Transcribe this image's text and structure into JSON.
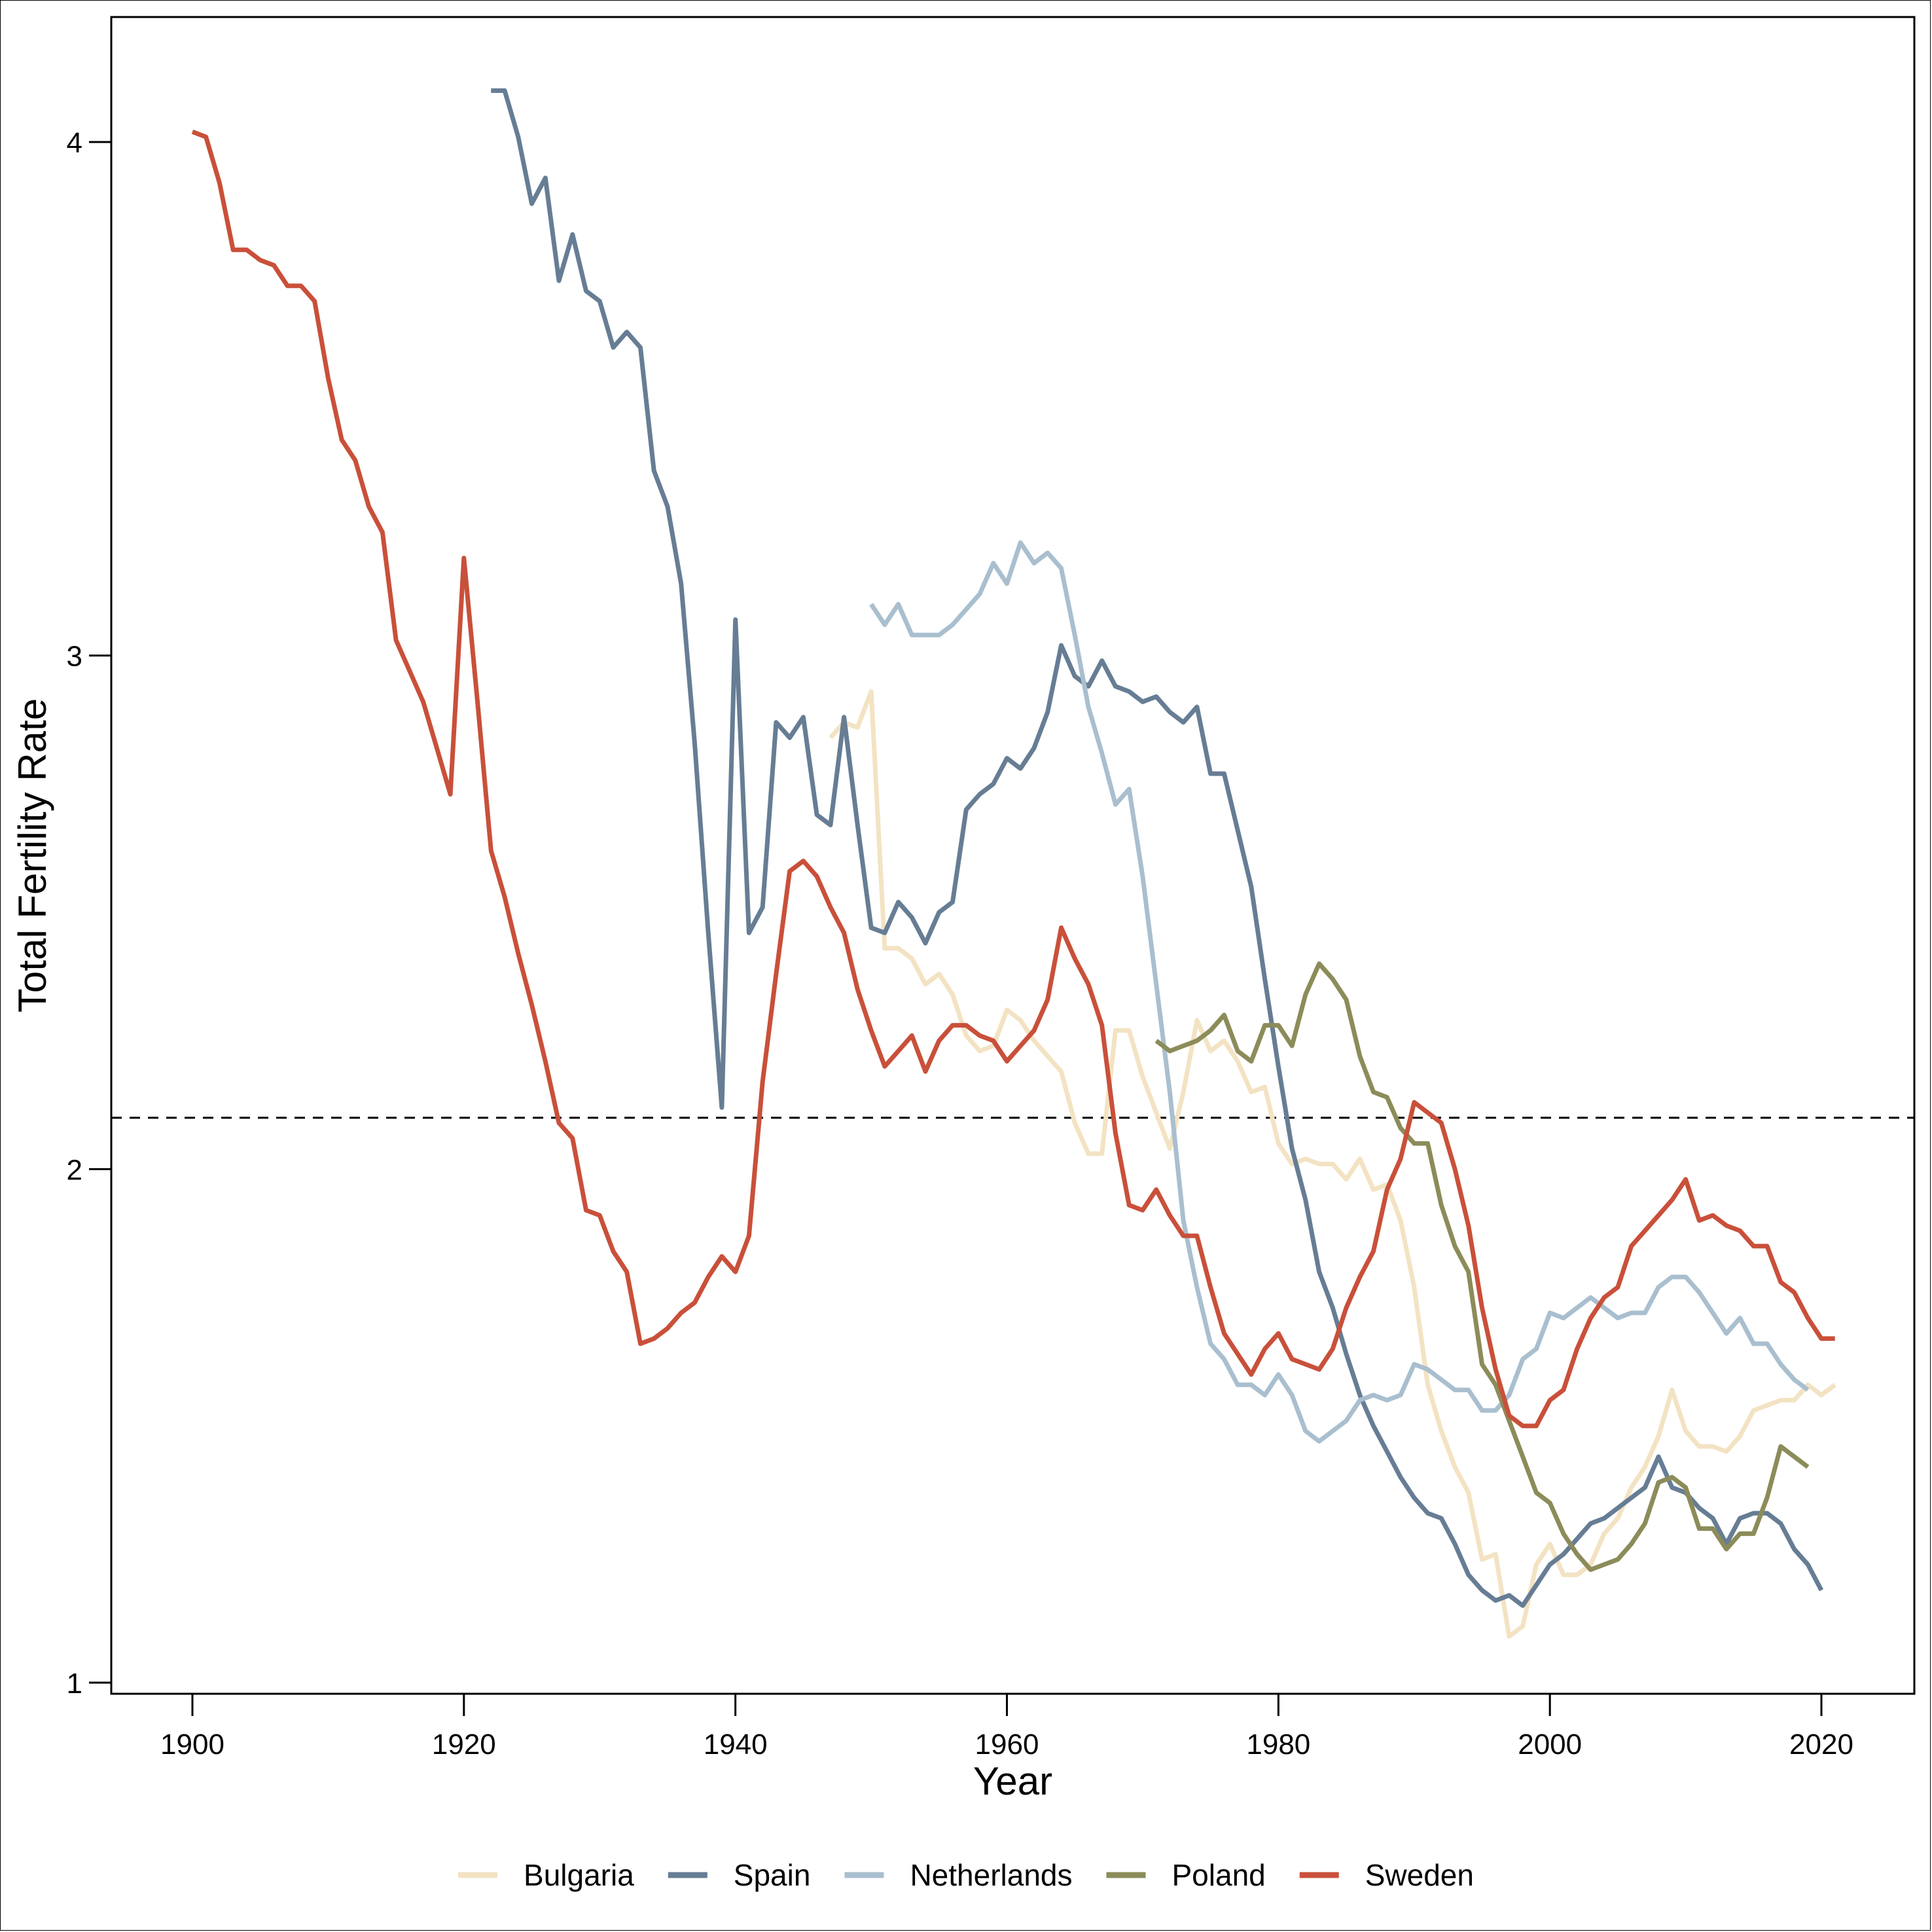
{
  "chart_data": {
    "type": "line",
    "xlabel": "Year",
    "ylabel": "Total Fertility Rate",
    "xlim": [
      1894,
      2027
    ],
    "ylim": [
      0.98,
      4.25
    ],
    "x_ticks": [
      1900,
      1920,
      1940,
      1960,
      1980,
      2000,
      2020
    ],
    "y_ticks": [
      1,
      2,
      3,
      4
    ],
    "reference_line": {
      "y": 2.1,
      "style": "dashed"
    },
    "legend_position": "bottom",
    "series": [
      {
        "name": "Bulgaria",
        "color": "#f3e3c3",
        "x": [
          1947,
          1948,
          1949,
          1950,
          1951,
          1952,
          1953,
          1954,
          1955,
          1956,
          1957,
          1958,
          1959,
          1960,
          1961,
          1962,
          1963,
          1964,
          1965,
          1966,
          1967,
          1968,
          1969,
          1970,
          1971,
          1972,
          1973,
          1974,
          1975,
          1976,
          1977,
          1978,
          1979,
          1980,
          1981,
          1982,
          1983,
          1984,
          1985,
          1986,
          1987,
          1988,
          1989,
          1990,
          1991,
          1992,
          1993,
          1994,
          1995,
          1996,
          1997,
          1998,
          1999,
          2000,
          2001,
          2002,
          2003,
          2004,
          2005,
          2006,
          2007,
          2008,
          2009,
          2010,
          2011,
          2012,
          2013,
          2014,
          2015,
          2016,
          2017,
          2018,
          2019,
          2020,
          2021
        ],
        "y": [
          2.84,
          2.87,
          2.86,
          2.93,
          2.43,
          2.43,
          2.41,
          2.36,
          2.38,
          2.34,
          2.26,
          2.23,
          2.24,
          2.31,
          2.29,
          2.25,
          2.22,
          2.19,
          2.09,
          2.03,
          2.03,
          2.27,
          2.27,
          2.18,
          2.11,
          2.04,
          2.15,
          2.29,
          2.23,
          2.25,
          2.21,
          2.15,
          2.16,
          2.05,
          2.01,
          2.02,
          2.01,
          2.01,
          1.98,
          2.02,
          1.96,
          1.97,
          1.9,
          1.77,
          1.58,
          1.49,
          1.42,
          1.37,
          1.24,
          1.25,
          1.09,
          1.11,
          1.23,
          1.27,
          1.21,
          1.21,
          1.23,
          1.29,
          1.32,
          1.38,
          1.42,
          1.48,
          1.57,
          1.49,
          1.46,
          1.46,
          1.45,
          1.48,
          1.53,
          1.54,
          1.55,
          1.55,
          1.58,
          1.56,
          1.58
        ]
      },
      {
        "name": "Spain",
        "color": "#667d94",
        "x": [
          1922,
          1923,
          1924,
          1925,
          1926,
          1927,
          1928,
          1929,
          1930,
          1931,
          1932,
          1933,
          1934,
          1935,
          1936,
          1937,
          1938,
          1939,
          1940,
          1941,
          1942,
          1943,
          1944,
          1945,
          1946,
          1947,
          1948,
          1949,
          1950,
          1951,
          1952,
          1953,
          1954,
          1955,
          1956,
          1957,
          1958,
          1959,
          1960,
          1961,
          1962,
          1963,
          1964,
          1965,
          1966,
          1967,
          1968,
          1969,
          1970,
          1971,
          1972,
          1973,
          1974,
          1975,
          1976,
          1977,
          1978,
          1979,
          1980,
          1981,
          1982,
          1983,
          1984,
          1985,
          1986,
          1987,
          1988,
          1989,
          1990,
          1991,
          1992,
          1993,
          1994,
          1995,
          1996,
          1997,
          1998,
          1999,
          2000,
          2001,
          2002,
          2003,
          2004,
          2005,
          2006,
          2007,
          2008,
          2009,
          2010,
          2011,
          2012,
          2013,
          2014,
          2015,
          2016,
          2017,
          2018,
          2019,
          2020
        ],
        "y": [
          4.1,
          4.1,
          4.01,
          3.88,
          3.93,
          3.73,
          3.82,
          3.71,
          3.69,
          3.6,
          3.63,
          3.6,
          3.36,
          3.29,
          3.14,
          2.83,
          2.46,
          2.12,
          3.07,
          2.46,
          2.51,
          2.87,
          2.84,
          2.88,
          2.69,
          2.67,
          2.88,
          2.67,
          2.47,
          2.46,
          2.52,
          2.49,
          2.44,
          2.5,
          2.52,
          2.7,
          2.73,
          2.75,
          2.8,
          2.78,
          2.82,
          2.89,
          3.02,
          2.96,
          2.94,
          2.99,
          2.94,
          2.93,
          2.91,
          2.92,
          2.89,
          2.87,
          2.9,
          2.77,
          2.77,
          2.66,
          2.55,
          2.37,
          2.2,
          2.04,
          1.94,
          1.8,
          1.73,
          1.64,
          1.56,
          1.5,
          1.45,
          1.4,
          1.36,
          1.33,
          1.32,
          1.27,
          1.21,
          1.18,
          1.16,
          1.17,
          1.15,
          1.19,
          1.23,
          1.25,
          1.28,
          1.31,
          1.32,
          1.34,
          1.36,
          1.38,
          1.44,
          1.38,
          1.37,
          1.34,
          1.32,
          1.27,
          1.32,
          1.33,
          1.33,
          1.31,
          1.26,
          1.23,
          1.18
        ]
      },
      {
        "name": "Netherlands",
        "color": "#a9bfcf",
        "x": [
          1950,
          1951,
          1952,
          1953,
          1954,
          1955,
          1956,
          1957,
          1958,
          1959,
          1960,
          1961,
          1962,
          1963,
          1964,
          1965,
          1966,
          1967,
          1968,
          1969,
          1970,
          1971,
          1972,
          1973,
          1974,
          1975,
          1976,
          1977,
          1978,
          1979,
          1980,
          1981,
          1982,
          1983,
          1984,
          1985,
          1986,
          1987,
          1988,
          1989,
          1990,
          1991,
          1992,
          1993,
          1994,
          1995,
          1996,
          1997,
          1998,
          1999,
          2000,
          2001,
          2002,
          2003,
          2004,
          2005,
          2006,
          2007,
          2008,
          2009,
          2010,
          2011,
          2012,
          2013,
          2014,
          2015,
          2016,
          2017,
          2018,
          2019
        ],
        "y": [
          3.1,
          3.06,
          3.1,
          3.04,
          3.04,
          3.04,
          3.06,
          3.09,
          3.12,
          3.18,
          3.14,
          3.22,
          3.18,
          3.2,
          3.17,
          3.04,
          2.9,
          2.81,
          2.71,
          2.74,
          2.57,
          2.36,
          2.15,
          1.9,
          1.77,
          1.66,
          1.63,
          1.58,
          1.58,
          1.56,
          1.6,
          1.56,
          1.49,
          1.47,
          1.49,
          1.51,
          1.55,
          1.56,
          1.55,
          1.56,
          1.62,
          1.61,
          1.59,
          1.57,
          1.57,
          1.53,
          1.53,
          1.56,
          1.63,
          1.65,
          1.72,
          1.71,
          1.73,
          1.75,
          1.73,
          1.71,
          1.72,
          1.72,
          1.77,
          1.79,
          1.79,
          1.76,
          1.72,
          1.68,
          1.71,
          1.66,
          1.66,
          1.62,
          1.59,
          1.57
        ]
      },
      {
        "name": "Poland",
        "color": "#8c8c5a",
        "x": [
          1971,
          1972,
          1973,
          1974,
          1975,
          1976,
          1977,
          1978,
          1979,
          1980,
          1981,
          1982,
          1983,
          1984,
          1985,
          1986,
          1987,
          1988,
          1989,
          1990,
          1991,
          1992,
          1993,
          1994,
          1995,
          1996,
          1997,
          1998,
          1999,
          2000,
          2001,
          2002,
          2003,
          2004,
          2005,
          2006,
          2007,
          2008,
          2009,
          2010,
          2011,
          2012,
          2013,
          2014,
          2015,
          2016,
          2017,
          2018,
          2019
        ],
        "y": [
          2.25,
          2.23,
          2.24,
          2.25,
          2.27,
          2.3,
          2.23,
          2.21,
          2.28,
          2.28,
          2.24,
          2.34,
          2.4,
          2.37,
          2.33,
          2.22,
          2.15,
          2.14,
          2.08,
          2.05,
          2.05,
          1.93,
          1.85,
          1.8,
          1.62,
          1.58,
          1.51,
          1.44,
          1.37,
          1.35,
          1.29,
          1.25,
          1.22,
          1.23,
          1.24,
          1.27,
          1.31,
          1.39,
          1.4,
          1.38,
          1.3,
          1.3,
          1.26,
          1.29,
          1.29,
          1.36,
          1.46,
          1.44,
          1.42
        ]
      },
      {
        "name": "Sweden",
        "color": "#c9503a",
        "x": [
          1900,
          1901,
          1902,
          1903,
          1904,
          1905,
          1906,
          1907,
          1908,
          1909,
          1910,
          1911,
          1912,
          1913,
          1914,
          1915,
          1916,
          1917,
          1918,
          1919,
          1920,
          1921,
          1922,
          1923,
          1924,
          1925,
          1926,
          1927,
          1928,
          1929,
          1930,
          1931,
          1932,
          1933,
          1934,
          1935,
          1936,
          1937,
          1938,
          1939,
          1940,
          1941,
          1942,
          1943,
          1944,
          1945,
          1946,
          1947,
          1948,
          1949,
          1950,
          1951,
          1952,
          1953,
          1954,
          1955,
          1956,
          1957,
          1958,
          1959,
          1960,
          1961,
          1962,
          1963,
          1964,
          1965,
          1966,
          1967,
          1968,
          1969,
          1970,
          1971,
          1972,
          1973,
          1974,
          1975,
          1976,
          1977,
          1978,
          1979,
          1980,
          1981,
          1982,
          1983,
          1984,
          1985,
          1986,
          1987,
          1988,
          1989,
          1990,
          1991,
          1992,
          1993,
          1994,
          1995,
          1996,
          1997,
          1998,
          1999,
          2000,
          2001,
          2002,
          2003,
          2004,
          2005,
          2006,
          2007,
          2008,
          2009,
          2010,
          2011,
          2012,
          2013,
          2014,
          2015,
          2016,
          2017,
          2018,
          2019,
          2020,
          2021
        ],
        "y": [
          4.02,
          4.01,
          3.92,
          3.79,
          3.79,
          3.77,
          3.76,
          3.72,
          3.72,
          3.69,
          3.54,
          3.42,
          3.38,
          3.29,
          3.24,
          3.03,
          2.97,
          2.91,
          2.82,
          2.73,
          3.19,
          2.91,
          2.62,
          2.53,
          2.42,
          2.32,
          2.21,
          2.09,
          2.06,
          1.92,
          1.91,
          1.84,
          1.8,
          1.66,
          1.67,
          1.69,
          1.72,
          1.74,
          1.79,
          1.83,
          1.8,
          1.87,
          2.17,
          2.38,
          2.58,
          2.6,
          2.57,
          2.51,
          2.46,
          2.35,
          2.27,
          2.2,
          2.23,
          2.26,
          2.19,
          2.25,
          2.28,
          2.28,
          2.26,
          2.25,
          2.21,
          2.24,
          2.27,
          2.33,
          2.47,
          2.41,
          2.36,
          2.28,
          2.07,
          1.93,
          1.92,
          1.96,
          1.91,
          1.87,
          1.87,
          1.77,
          1.68,
          1.64,
          1.6,
          1.65,
          1.68,
          1.63,
          1.62,
          1.61,
          1.65,
          1.73,
          1.79,
          1.84,
          1.96,
          2.02,
          2.13,
          2.11,
          2.09,
          2.0,
          1.89,
          1.73,
          1.61,
          1.52,
          1.5,
          1.5,
          1.55,
          1.57,
          1.65,
          1.71,
          1.75,
          1.77,
          1.85,
          1.88,
          1.91,
          1.94,
          1.98,
          1.9,
          1.91,
          1.89,
          1.88,
          1.85,
          1.85,
          1.78,
          1.76,
          1.71,
          1.67,
          1.67
        ]
      }
    ]
  }
}
